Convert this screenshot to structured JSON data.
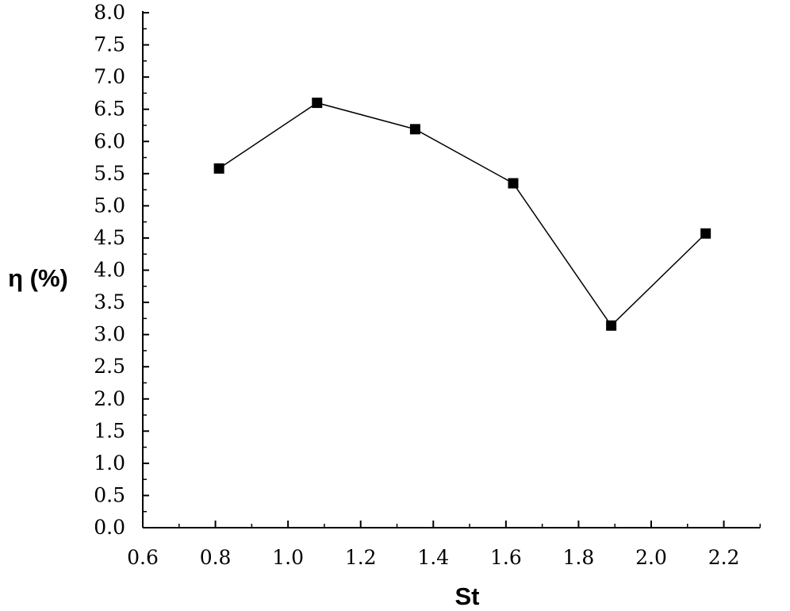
{
  "chart_data": {
    "type": "line",
    "title": "",
    "xlabel": "St",
    "ylabel": "η (%)",
    "xlim": [
      0.6,
      2.3
    ],
    "ylim": [
      0.0,
      8.0
    ],
    "x_ticks": [
      0.6,
      0.8,
      1.0,
      1.2,
      1.4,
      1.6,
      1.8,
      2.0,
      2.2
    ],
    "x_tick_labels": [
      "0.6",
      "0.8",
      "1.0",
      "1.2",
      "1.4",
      "1.6",
      "1.8",
      "2.0",
      "2.2"
    ],
    "y_ticks": [
      0.0,
      0.5,
      1.0,
      1.5,
      2.0,
      2.5,
      3.0,
      3.5,
      4.0,
      4.5,
      5.0,
      5.5,
      6.0,
      6.5,
      7.0,
      7.5,
      8.0
    ],
    "y_tick_labels": [
      "0.0",
      "0.5",
      "1.0",
      "1.5",
      "2.0",
      "2.5",
      "3.0",
      "3.5",
      "4.0",
      "4.5",
      "5.0",
      "5.5",
      "6.0",
      "6.5",
      "7.0",
      "7.5",
      "8.0"
    ],
    "grid": false,
    "legend": "none",
    "series": [
      {
        "x": [
          0.81,
          1.08,
          1.35,
          1.62,
          1.89,
          2.15
        ],
        "y": [
          5.58,
          6.6,
          6.19,
          5.35,
          3.14,
          4.57
        ],
        "marker": "square",
        "color": "#000000"
      }
    ]
  }
}
